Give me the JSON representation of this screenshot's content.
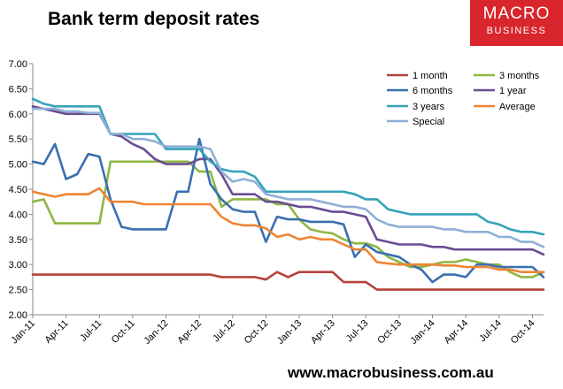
{
  "title": "Bank term deposit rates",
  "logo": {
    "line1": "MACRO",
    "line2": "BUSINESS"
  },
  "footer": {
    "url": "www.macrobusiness.com.au"
  },
  "chart_data": {
    "type": "line",
    "title": "Bank term deposit rates",
    "xlabel": "",
    "ylabel": "",
    "ylim": [
      2.0,
      7.0
    ],
    "y_ticks": [
      "7.00",
      "6.50",
      "6.00",
      "5.50",
      "5.00",
      "4.50",
      "4.00",
      "3.50",
      "3.00",
      "2.50",
      "2.00"
    ],
    "x_ticks": [
      "Jan-11",
      "Apr-11",
      "Jul-11",
      "Oct-11",
      "Jan-12",
      "Apr-12",
      "Jul-12",
      "Oct-12",
      "Jan-13",
      "Apr-13",
      "Jul-13",
      "Oct-13",
      "Jan-14",
      "Apr-14",
      "Jul-14",
      "Oct-14"
    ],
    "x_months": [
      "Jan-11",
      "Feb-11",
      "Mar-11",
      "Apr-11",
      "May-11",
      "Jun-11",
      "Jul-11",
      "Aug-11",
      "Sep-11",
      "Oct-11",
      "Nov-11",
      "Dec-11",
      "Jan-12",
      "Feb-12",
      "Mar-12",
      "Apr-12",
      "May-12",
      "Jun-12",
      "Jul-12",
      "Aug-12",
      "Sep-12",
      "Oct-12",
      "Nov-12",
      "Dec-12",
      "Jan-13",
      "Feb-13",
      "Mar-13",
      "Apr-13",
      "May-13",
      "Jun-13",
      "Jul-13",
      "Aug-13",
      "Sep-13",
      "Oct-13",
      "Nov-13",
      "Dec-13",
      "Jan-14",
      "Feb-14",
      "Mar-14",
      "Apr-14",
      "May-14",
      "Jun-14",
      "Jul-14",
      "Aug-14",
      "Sep-14",
      "Oct-14",
      "Nov-14"
    ],
    "grid": false,
    "legend_position": "top-right",
    "series": [
      {
        "name": "1 month",
        "color": "#b5433c",
        "values": [
          2.8,
          2.8,
          2.8,
          2.8,
          2.8,
          2.8,
          2.8,
          2.8,
          2.8,
          2.8,
          2.8,
          2.8,
          2.8,
          2.8,
          2.8,
          2.8,
          2.8,
          2.75,
          2.75,
          2.75,
          2.75,
          2.7,
          2.85,
          2.75,
          2.85,
          2.85,
          2.85,
          2.85,
          2.65,
          2.65,
          2.65,
          2.5,
          2.5,
          2.5,
          2.5,
          2.5,
          2.5,
          2.5,
          2.5,
          2.5,
          2.5,
          2.5,
          2.5,
          2.5,
          2.5,
          2.5,
          2.5
        ]
      },
      {
        "name": "3 months",
        "color": "#8db843",
        "values": [
          4.25,
          4.3,
          3.82,
          3.82,
          3.82,
          3.82,
          3.82,
          5.05,
          5.05,
          5.05,
          5.05,
          5.05,
          5.05,
          5.05,
          5.05,
          4.85,
          4.85,
          4.15,
          4.3,
          4.3,
          4.3,
          4.3,
          4.2,
          4.2,
          3.9,
          3.7,
          3.65,
          3.62,
          3.5,
          3.42,
          3.42,
          3.35,
          3.15,
          3.05,
          2.95,
          2.95,
          3.0,
          3.05,
          3.05,
          3.1,
          3.05,
          3.0,
          3.0,
          2.85,
          2.75,
          2.75,
          2.85
        ]
      },
      {
        "name": "6 months",
        "color": "#3a6fb0",
        "values": [
          5.05,
          5.0,
          5.4,
          4.7,
          4.8,
          5.2,
          5.15,
          4.3,
          3.75,
          3.7,
          3.7,
          3.7,
          3.7,
          4.45,
          4.45,
          5.5,
          4.6,
          4.3,
          4.1,
          4.05,
          4.05,
          3.45,
          3.95,
          3.9,
          3.9,
          3.85,
          3.85,
          3.85,
          3.8,
          3.15,
          3.4,
          3.25,
          3.2,
          3.15,
          3.0,
          2.9,
          2.65,
          2.8,
          2.8,
          2.75,
          3.0,
          3.0,
          2.95,
          2.95,
          2.95,
          2.95,
          2.75
        ]
      },
      {
        "name": "1 year",
        "color": "#6a4c93",
        "values": [
          6.15,
          6.1,
          6.05,
          6.0,
          6.0,
          6.0,
          6.0,
          5.6,
          5.55,
          5.4,
          5.3,
          5.1,
          5.0,
          5.0,
          5.0,
          5.1,
          5.1,
          4.8,
          4.4,
          4.4,
          4.4,
          4.25,
          4.25,
          4.2,
          4.15,
          4.15,
          4.1,
          4.05,
          4.05,
          4.0,
          3.95,
          3.5,
          3.45,
          3.4,
          3.4,
          3.4,
          3.35,
          3.35,
          3.3,
          3.3,
          3.3,
          3.3,
          3.3,
          3.3,
          3.3,
          3.3,
          3.2
        ]
      },
      {
        "name": "3 years",
        "color": "#36a3b8",
        "values": [
          6.3,
          6.2,
          6.15,
          6.15,
          6.15,
          6.15,
          6.15,
          5.6,
          5.6,
          5.6,
          5.6,
          5.6,
          5.3,
          5.3,
          5.3,
          5.3,
          5.05,
          4.9,
          4.85,
          4.85,
          4.75,
          4.45,
          4.45,
          4.45,
          4.45,
          4.45,
          4.45,
          4.45,
          4.45,
          4.4,
          4.3,
          4.3,
          4.1,
          4.05,
          4.0,
          4.0,
          4.0,
          4.0,
          4.0,
          4.0,
          4.0,
          3.85,
          3.8,
          3.7,
          3.65,
          3.65,
          3.6
        ]
      },
      {
        "name": "Average",
        "color": "#ee8433",
        "values": [
          4.45,
          4.4,
          4.35,
          4.4,
          4.4,
          4.4,
          4.52,
          4.25,
          4.25,
          4.25,
          4.2,
          4.2,
          4.2,
          4.2,
          4.2,
          4.2,
          4.2,
          3.95,
          3.82,
          3.78,
          3.78,
          3.72,
          3.55,
          3.6,
          3.5,
          3.55,
          3.5,
          3.5,
          3.4,
          3.3,
          3.3,
          3.05,
          3.02,
          3.0,
          3.0,
          3.0,
          3.0,
          2.98,
          2.98,
          2.95,
          2.95,
          2.95,
          2.9,
          2.9,
          2.85,
          2.85,
          2.85
        ]
      },
      {
        "name": "Special",
        "color": "#8eafd8",
        "values": [
          6.1,
          6.1,
          6.1,
          6.05,
          6.05,
          6.02,
          6.02,
          5.6,
          5.6,
          5.5,
          5.5,
          5.45,
          5.35,
          5.35,
          5.35,
          5.35,
          5.3,
          4.85,
          4.65,
          4.7,
          4.65,
          4.4,
          4.35,
          4.3,
          4.3,
          4.3,
          4.25,
          4.2,
          4.15,
          4.15,
          4.1,
          3.9,
          3.8,
          3.75,
          3.75,
          3.75,
          3.75,
          3.7,
          3.7,
          3.65,
          3.65,
          3.65,
          3.55,
          3.55,
          3.45,
          3.45,
          3.35
        ]
      }
    ]
  }
}
